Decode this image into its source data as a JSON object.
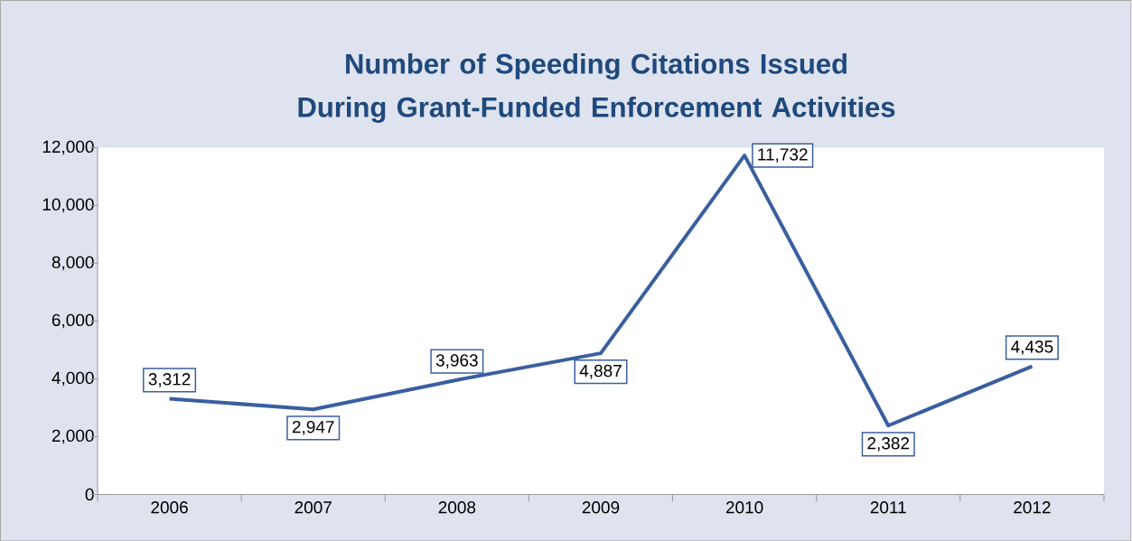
{
  "chart_data": {
    "type": "line",
    "title": "Number of Speeding Citations Issued During Grant-Funded Enforcement Activities",
    "categories": [
      "2006",
      "2007",
      "2008",
      "2009",
      "2010",
      "2011",
      "2012"
    ],
    "series": [
      {
        "color": "#3a5fa0",
        "values": [
          3312,
          2947,
          3963,
          4887,
          11732,
          2382,
          4435
        ],
        "value_labels": [
          "3,312",
          "2,947",
          "3,963",
          "4,887",
          "11,732",
          "2,382",
          "4,435"
        ]
      }
    ],
    "ylim": [
      0,
      12000
    ],
    "yticks": [
      0,
      {
        "value": 2000,
        "label": "2,000"
      },
      {
        "value": 4000,
        "label": "4,000"
      },
      {
        "value": 6000,
        "label": "6,000"
      },
      {
        "value": 8000,
        "label": "8,000"
      },
      {
        "value": 10000,
        "label": "10,000"
      },
      {
        "value": 12000,
        "label": "12,000"
      }
    ],
    "grid": false,
    "legend": false,
    "marker": "none",
    "line_style": "solid"
  }
}
